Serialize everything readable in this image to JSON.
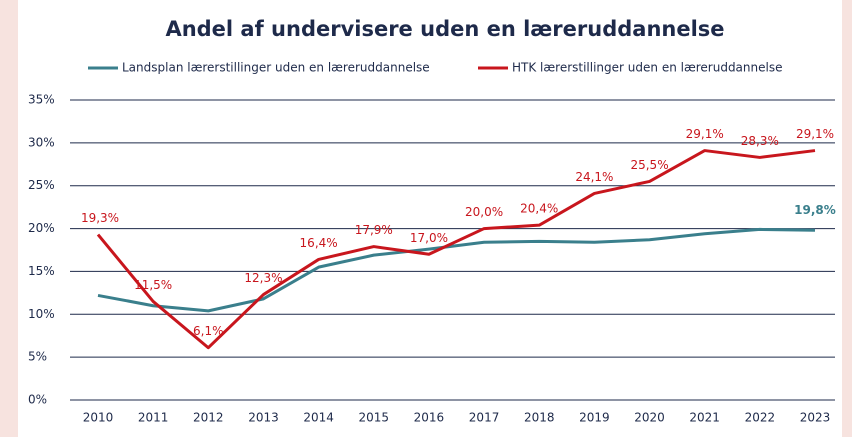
{
  "chart_data": {
    "type": "line",
    "title": "Andel af undervisere uden en læreruddannelse",
    "categories": [
      "2010",
      "2011",
      "2012",
      "2013",
      "2014",
      "2015",
      "2016",
      "2017",
      "2018",
      "2019",
      "2020",
      "2021",
      "2022",
      "2023"
    ],
    "series": [
      {
        "name": "Landsplan lærerstillinger uden en læreruddannelse",
        "color": "#3a7f8c",
        "values": [
          12.2,
          11.0,
          10.4,
          11.8,
          15.5,
          16.9,
          17.6,
          18.4,
          18.5,
          18.4,
          18.7,
          19.4,
          19.9,
          19.8
        ],
        "value_labels": [
          null,
          null,
          null,
          null,
          null,
          null,
          null,
          null,
          null,
          null,
          null,
          null,
          null,
          "19,8%"
        ]
      },
      {
        "name": "HTK lærerstillinger uden en læreruddannelse",
        "color": "#c8161d",
        "values": [
          19.3,
          11.5,
          6.1,
          12.3,
          16.4,
          17.9,
          17.0,
          20.0,
          20.4,
          24.1,
          25.5,
          29.1,
          28.3,
          29.1
        ],
        "value_labels": [
          "19,3%",
          "11,5%",
          "6,1%",
          "12,3%",
          "16,4%",
          "17,9%",
          "17,0%",
          "20,0%",
          "20,4%",
          "24,1%",
          "25,5%",
          "29,1%",
          "28,3%",
          "29,1%"
        ]
      }
    ],
    "ylim": [
      0,
      35
    ],
    "yticks": [
      {
        "value": 0,
        "label": "0%"
      },
      {
        "value": 5,
        "label": "5%"
      },
      {
        "value": 10,
        "label": "10%"
      },
      {
        "value": 15,
        "label": "15%"
      },
      {
        "value": 20,
        "label": "20%"
      },
      {
        "value": 25,
        "label": "25%"
      },
      {
        "value": 30,
        "label": "30%"
      },
      {
        "value": 35,
        "label": "35%"
      }
    ],
    "grid": true
  }
}
